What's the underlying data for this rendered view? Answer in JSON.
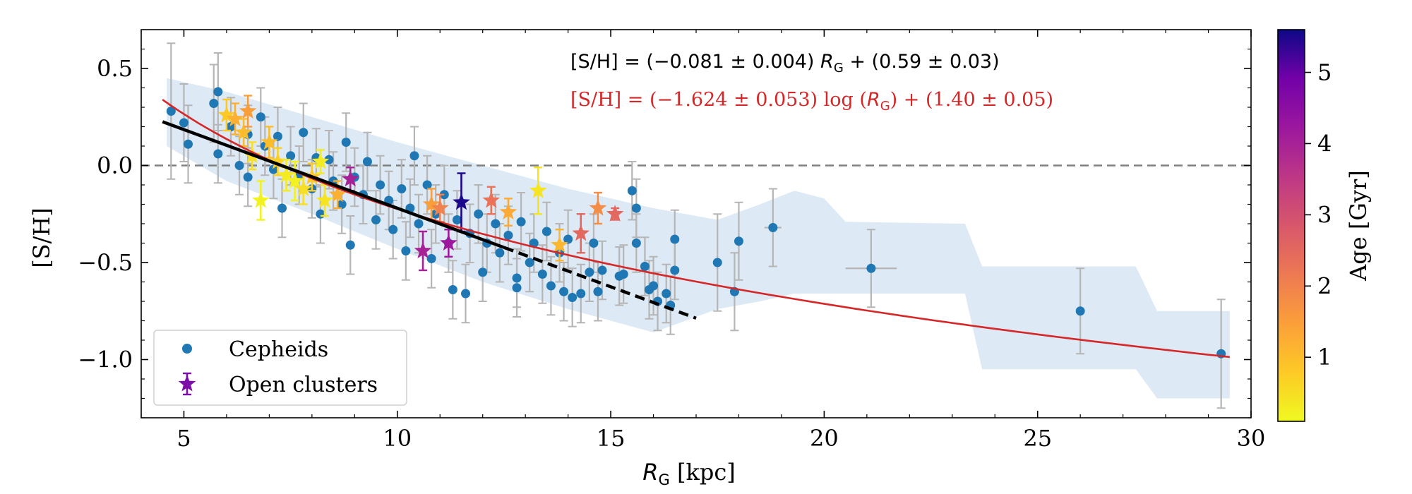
{
  "chart_data": {
    "type": "scatter",
    "xlabel_var": "R",
    "xlabel_sub": "G",
    "xlabel_unit": " [kpc]",
    "ylabel": "[S/H]",
    "xlim": [
      4,
      30
    ],
    "ylim": [
      -1.3,
      0.7
    ],
    "xticks": [
      5,
      10,
      15,
      20,
      25,
      30
    ],
    "yticks": [
      0.5,
      0.0,
      -0.5,
      -1.0
    ],
    "ytick_labels": [
      "0.5",
      "0.0",
      "−0.5",
      "−1.0"
    ],
    "solar_line": 0.0,
    "colorbar": {
      "label": "Age [Gyr]",
      "range": [
        0.1,
        5.6
      ],
      "ticks": [
        1,
        2,
        3,
        4,
        5
      ],
      "colormap": "plasma_r"
    },
    "annotations": {
      "linear_fit": {
        "prefix": "[S/H] = (−0.081 ± 0.004) ",
        "var": "R",
        "sub": "G",
        "suffix": " + (0.59 ± 0.03)",
        "color": "#000000"
      },
      "log_fit": {
        "prefix": "[S/H] = (−1.624 ± 0.053) log (",
        "var": "R",
        "sub": "G",
        "suffix": ") + (1.40 ± 0.05)",
        "color": "#d62728"
      }
    },
    "legend": {
      "position": "lower-left",
      "entries": [
        {
          "label": "Cepheids",
          "marker": "circle",
          "color": "#1f77b4"
        },
        {
          "label": "Open clusters",
          "marker": "star",
          "color": "#7b0fa8"
        }
      ]
    },
    "linear_fit_line": {
      "slope": -0.081,
      "intercept": 0.59,
      "x_range": [
        4.5,
        17.0
      ],
      "dashed_from": 12.5,
      "color": "#000000"
    },
    "log_fit_line": {
      "slope": -1.624,
      "intercept": 1.4,
      "x_range": [
        4.5,
        29.5
      ],
      "color": "#d62728"
    },
    "dispersion_band": [
      [
        4.6,
        0.45,
        0.1
      ],
      [
        6,
        0.38,
        -0.08
      ],
      [
        8,
        0.25,
        -0.25
      ],
      [
        10,
        0.12,
        -0.43
      ],
      [
        12,
        0.0,
        -0.6
      ],
      [
        14,
        -0.12,
        -0.74
      ],
      [
        16,
        -0.22,
        -0.86
      ],
      [
        17.5,
        -0.28,
        -0.74
      ],
      [
        18.5,
        -0.2,
        -0.7
      ],
      [
        19.3,
        -0.13,
        -0.66
      ],
      [
        20.0,
        -0.17,
        -0.66
      ],
      [
        20.5,
        -0.29,
        -0.66
      ],
      [
        23.3,
        -0.3,
        -0.66
      ],
      [
        23.7,
        -0.52,
        -1.05
      ],
      [
        27.3,
        -0.52,
        -1.05
      ],
      [
        27.8,
        -0.75,
        -1.2
      ],
      [
        29.5,
        -0.75,
        -1.2
      ]
    ],
    "cepheids": [
      [
        4.7,
        0.28,
        0.35,
        0.05
      ],
      [
        5.1,
        0.11,
        0.2,
        0.05
      ],
      [
        5.0,
        0.22,
        0.2,
        0.05
      ],
      [
        5.7,
        0.32,
        0.2,
        0.05
      ],
      [
        5.8,
        0.38,
        0.2,
        0.05
      ],
      [
        5.8,
        0.06,
        0.15,
        0.05
      ],
      [
        6.1,
        0.2,
        0.15,
        0.05
      ],
      [
        6.3,
        0.0,
        0.15,
        0.05
      ],
      [
        6.5,
        0.16,
        0.15,
        0.05
      ],
      [
        6.5,
        -0.06,
        0.15,
        0.05
      ],
      [
        6.8,
        0.25,
        0.15,
        0.05
      ],
      [
        6.9,
        0.1,
        0.15,
        0.05
      ],
      [
        7.1,
        -0.02,
        0.15,
        0.05
      ],
      [
        7.2,
        0.15,
        0.15,
        0.05
      ],
      [
        7.3,
        -0.22,
        0.15,
        0.05
      ],
      [
        7.5,
        0.05,
        0.15,
        0.05
      ],
      [
        7.7,
        -0.05,
        0.15,
        0.05
      ],
      [
        7.8,
        0.17,
        0.15,
        0.05
      ],
      [
        8.0,
        -0.12,
        0.15,
        0.05
      ],
      [
        8.1,
        0.04,
        0.15,
        0.05
      ],
      [
        8.2,
        -0.25,
        0.15,
        0.05
      ],
      [
        8.4,
        0.03,
        0.15,
        0.05
      ],
      [
        8.5,
        -0.08,
        0.15,
        0.05
      ],
      [
        8.7,
        -0.2,
        0.15,
        0.05
      ],
      [
        8.8,
        0.12,
        0.15,
        0.05
      ],
      [
        8.9,
        -0.41,
        0.15,
        0.05
      ],
      [
        9.0,
        -0.06,
        0.15,
        0.05
      ],
      [
        9.2,
        -0.15,
        0.15,
        0.05
      ],
      [
        9.3,
        0.02,
        0.15,
        0.05
      ],
      [
        9.5,
        -0.28,
        0.15,
        0.05
      ],
      [
        9.6,
        -0.1,
        0.15,
        0.05
      ],
      [
        9.8,
        -0.18,
        0.15,
        0.05
      ],
      [
        9.9,
        -0.33,
        0.15,
        0.05
      ],
      [
        10.1,
        -0.12,
        0.15,
        0.05
      ],
      [
        10.2,
        -0.44,
        0.15,
        0.05
      ],
      [
        10.3,
        -0.22,
        0.15,
        0.05
      ],
      [
        10.4,
        0.05,
        0.15,
        0.05
      ],
      [
        10.5,
        -0.3,
        0.15,
        0.05
      ],
      [
        10.7,
        -0.1,
        0.15,
        0.05
      ],
      [
        10.8,
        -0.48,
        0.15,
        0.05
      ],
      [
        10.9,
        -0.25,
        0.15,
        0.05
      ],
      [
        11.1,
        -0.15,
        0.15,
        0.05
      ],
      [
        11.2,
        -0.4,
        0.15,
        0.05
      ],
      [
        11.3,
        -0.64,
        0.15,
        0.05
      ],
      [
        11.4,
        -0.28,
        0.15,
        0.05
      ],
      [
        11.6,
        -0.66,
        0.15,
        0.05
      ],
      [
        11.7,
        -0.35,
        0.15,
        0.05
      ],
      [
        11.9,
        -0.25,
        0.15,
        0.05
      ],
      [
        12.0,
        -0.55,
        0.15,
        0.05
      ],
      [
        12.1,
        -0.4,
        0.15,
        0.05
      ],
      [
        12.3,
        -0.3,
        0.15,
        0.05
      ],
      [
        12.4,
        -0.45,
        0.15,
        0.05
      ],
      [
        12.6,
        -0.36,
        0.15,
        0.05
      ],
      [
        12.8,
        -0.58,
        0.15,
        0.05
      ],
      [
        12.8,
        -0.63,
        0.15,
        0.05
      ],
      [
        12.9,
        -0.29,
        0.15,
        0.05
      ],
      [
        13.1,
        -0.5,
        0.15,
        0.05
      ],
      [
        13.2,
        -0.4,
        0.15,
        0.05
      ],
      [
        13.4,
        -0.56,
        0.15,
        0.05
      ],
      [
        13.5,
        -0.34,
        0.15,
        0.05
      ],
      [
        13.6,
        -0.62,
        0.15,
        0.05
      ],
      [
        13.8,
        -0.45,
        0.15,
        0.05
      ],
      [
        13.9,
        -0.65,
        0.15,
        0.05
      ],
      [
        14.0,
        -0.38,
        0.15,
        0.05
      ],
      [
        14.1,
        -0.68,
        0.15,
        0.05
      ],
      [
        14.3,
        -0.66,
        0.15,
        0.05
      ],
      [
        14.5,
        -0.55,
        0.15,
        0.05
      ],
      [
        14.6,
        -0.4,
        0.15,
        0.05
      ],
      [
        14.7,
        -0.65,
        0.15,
        0.05
      ],
      [
        14.8,
        -0.54,
        0.15,
        0.05
      ],
      [
        15.2,
        -0.57,
        0.15,
        0.05
      ],
      [
        15.3,
        -0.56,
        0.15,
        0.05
      ],
      [
        15.5,
        -0.13,
        0.15,
        0.05
      ],
      [
        15.6,
        -0.22,
        0.15,
        0.05
      ],
      [
        15.6,
        -0.4,
        0.15,
        0.05
      ],
      [
        15.8,
        -0.52,
        0.15,
        0.05
      ],
      [
        15.9,
        -0.64,
        0.15,
        0.05
      ],
      [
        16.0,
        -0.62,
        0.15,
        0.05
      ],
      [
        16.1,
        -0.7,
        0.15,
        0.05
      ],
      [
        16.3,
        -0.66,
        0.15,
        0.05
      ],
      [
        16.4,
        -0.72,
        0.15,
        0.05
      ],
      [
        16.5,
        -0.38,
        0.15,
        0.05
      ],
      [
        16.5,
        -0.54,
        0.15,
        0.05
      ],
      [
        17.5,
        -0.5,
        0.25,
        0.05
      ],
      [
        17.9,
        -0.65,
        0.2,
        0.05
      ],
      [
        18.0,
        -0.39,
        0.2,
        0.05
      ],
      [
        18.8,
        -0.32,
        0.2,
        0.2
      ],
      [
        21.1,
        -0.53,
        0.2,
        0.6
      ],
      [
        26.0,
        -0.75,
        0.22,
        0.05
      ],
      [
        29.3,
        -0.97,
        0.28,
        0.05
      ]
    ],
    "open_clusters": [
      [
        6.0,
        0.26,
        0.08,
        0.8
      ],
      [
        6.2,
        0.24,
        0.08,
        1.2
      ],
      [
        6.4,
        0.17,
        0.07,
        1.0
      ],
      [
        6.5,
        0.28,
        0.08,
        1.5
      ],
      [
        6.6,
        0.05,
        0.07,
        0.5
      ],
      [
        6.8,
        -0.18,
        0.1,
        0.2
      ],
      [
        7.0,
        0.12,
        0.08,
        1.0
      ],
      [
        7.2,
        0.02,
        0.07,
        0.7
      ],
      [
        7.4,
        -0.05,
        0.08,
        0.3
      ],
      [
        7.6,
        -0.08,
        0.1,
        0.2
      ],
      [
        7.8,
        -0.12,
        0.08,
        0.5
      ],
      [
        8.0,
        -0.06,
        0.07,
        0.8
      ],
      [
        8.2,
        0.02,
        0.06,
        0.3
      ],
      [
        8.3,
        -0.18,
        0.08,
        0.4
      ],
      [
        8.6,
        -0.15,
        0.07,
        1.2
      ],
      [
        8.9,
        -0.07,
        0.06,
        4.0
      ],
      [
        10.6,
        -0.44,
        0.1,
        4.0
      ],
      [
        10.8,
        -0.2,
        0.08,
        1.5
      ],
      [
        11.0,
        -0.22,
        0.07,
        2.0
      ],
      [
        11.2,
        -0.4,
        0.07,
        4.2
      ],
      [
        11.5,
        -0.19,
        0.15,
        5.5
      ],
      [
        12.2,
        -0.18,
        0.07,
        2.3
      ],
      [
        12.6,
        -0.24,
        0.07,
        1.3
      ],
      [
        13.3,
        -0.13,
        0.12,
        0.4
      ],
      [
        13.8,
        -0.41,
        0.08,
        1.1
      ],
      [
        14.3,
        -0.35,
        0.1,
        2.5
      ],
      [
        14.7,
        -0.22,
        0.08,
        1.8
      ],
      [
        15.1,
        -0.25,
        0.03,
        2.5
      ]
    ]
  }
}
